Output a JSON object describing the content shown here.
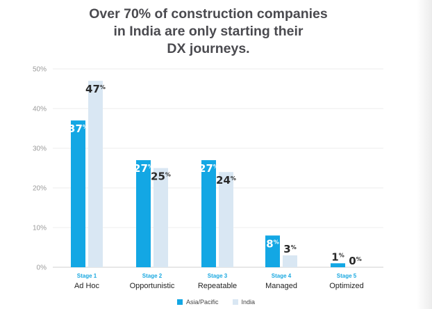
{
  "title_lines": [
    "Over 70% of construction companies",
    "in India are only starting their",
    "DX journeys."
  ],
  "colors": {
    "asia_pacific": "#13a7e4",
    "india": "#d9e7f3",
    "label_on_dark": "#ffffff",
    "label_on_light": "#2a2a2a",
    "stage_text": "#1aa8e0"
  },
  "legend": [
    {
      "name": "Asia/Pacific",
      "color": "#13a7e4"
    },
    {
      "name": "India",
      "color": "#d9e7f3"
    }
  ],
  "chart_data": {
    "type": "bar",
    "title": "Over 70% of construction companies in India are only starting their DX journeys.",
    "categories": [
      {
        "stage": "Stage 1",
        "name": "Ad Hoc"
      },
      {
        "stage": "Stage 2",
        "name": "Opportunistic"
      },
      {
        "stage": "Stage 3",
        "name": "Repeatable"
      },
      {
        "stage": "Stage 4",
        "name": "Managed"
      },
      {
        "stage": "Stage 5",
        "name": "Optimized"
      }
    ],
    "series": [
      {
        "name": "Asia/Pacific",
        "values": [
          37,
          27,
          27,
          8,
          1
        ]
      },
      {
        "name": "India",
        "values": [
          47,
          25,
          24,
          3,
          0
        ]
      }
    ],
    "ylim": [
      0,
      50
    ],
    "yticks": [
      "0%",
      "10%",
      "20%",
      "30%",
      "40%",
      "50%"
    ],
    "grid": true,
    "legend_position": "bottom"
  }
}
